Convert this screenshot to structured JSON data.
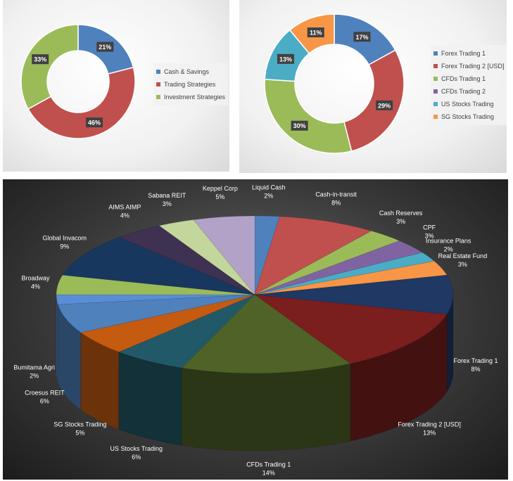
{
  "chart_data": [
    {
      "type": "pie",
      "variant": "doughnut",
      "title": "",
      "categories": [
        "Cash & Savings",
        "Trading Strategies",
        "Investment Strategies"
      ],
      "values": [
        21,
        46,
        33
      ],
      "labels": [
        "21%",
        "46%",
        "33%"
      ],
      "colors": [
        "#4f81bd",
        "#c0504d",
        "#9bbb59"
      ],
      "legend": "right"
    },
    {
      "type": "pie",
      "variant": "doughnut",
      "title": "",
      "categories": [
        "Forex Trading 1",
        "Forex Trading 2 [USD]",
        "CFDs Trading 1",
        "CFDs Trading 2",
        "US Stocks Trading",
        "SG Stocks Trading"
      ],
      "values": [
        17,
        29,
        30,
        0,
        13,
        11
      ],
      "labels": [
        "17%",
        "29%",
        "30%",
        "",
        "13%",
        "11%"
      ],
      "colors": [
        "#4f81bd",
        "#c0504d",
        "#9bbb59",
        "#8064a2",
        "#4bacc6",
        "#f79646"
      ],
      "legend": "right"
    },
    {
      "type": "pie",
      "variant": "3d",
      "title": "",
      "categories": [
        "Liquid Cash",
        "Cash-in-transit",
        "Cash Reserves",
        "CPF",
        "Insurance Plans",
        "Real Estate Fund",
        "Forex Trading 1",
        "Forex Trading 2 [USD]",
        "CFDs Trading 1",
        "US Stocks Trading",
        "SG Stocks Trading",
        "Croesus REIT",
        "Bumitama Agri",
        "Broadway",
        "Global Invacom",
        "AIMS AIMP",
        "Sabana REIT",
        "Keppel Corp"
      ],
      "values": [
        2,
        8,
        3,
        3,
        2,
        3,
        8,
        13,
        14,
        6,
        5,
        6,
        2,
        4,
        9,
        4,
        3,
        5
      ],
      "labels": [
        "2%",
        "8%",
        "3%",
        "3%",
        "2%",
        "3%",
        "8%",
        "13%",
        "14%",
        "6%",
        "5%",
        "6%",
        "2%",
        "4%",
        "9%",
        "4%",
        "3%",
        "5%"
      ],
      "colors": [
        "#4f81bd",
        "#c0504d",
        "#9bbb59",
        "#8064a2",
        "#4bacc6",
        "#f79646",
        "#1f3864",
        "#7b1e1e",
        "#4f6228",
        "#215968",
        "#c55a11",
        "#4f81bd",
        "#5a8dd6",
        "#9bbb59",
        "#17375e",
        "#3f3151",
        "#c3d69b",
        "#b3a2c7"
      ],
      "legend": "none"
    }
  ]
}
